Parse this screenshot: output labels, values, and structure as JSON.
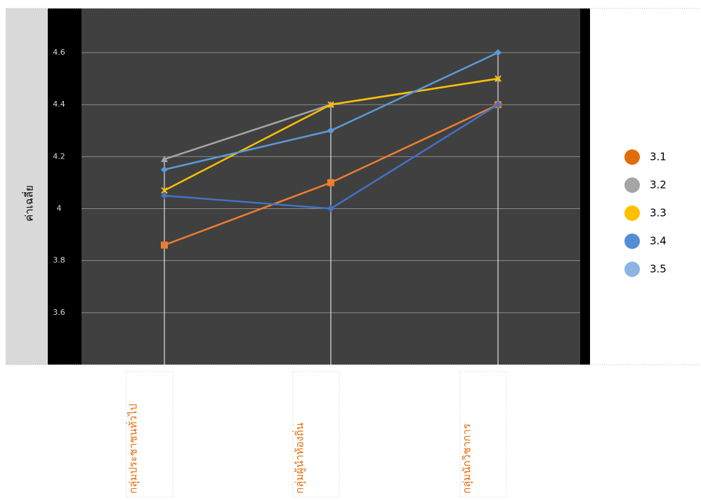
{
  "chart_data": {
    "type": "line",
    "y_label": "ค่าเฉลี่ย",
    "categories": [
      "กลุ่มประชาชนทั่วไป",
      "กลุ่มผู้นำท้องถิ่น",
      "กลุ่มนักวิชาการ"
    ],
    "series": [
      {
        "name": "3.1",
        "color": "#ED7D31",
        "legend_color": "#E36C0A",
        "marker": "square",
        "values": [
          3.86,
          4.1,
          4.4
        ]
      },
      {
        "name": "3.2",
        "color": "#A5A5A5",
        "legend_color": "#A5A5A5",
        "marker": "triangle",
        "values": [
          4.19,
          4.4,
          4.5
        ]
      },
      {
        "name": "3.3",
        "color": "#FFC000",
        "legend_color": "#FFC000",
        "marker": "x",
        "values": [
          4.07,
          4.4,
          4.5
        ]
      },
      {
        "name": "3.4",
        "color": "#4472C4",
        "legend_color": "#558ED5",
        "marker": "diamond",
        "values": [
          4.05,
          4.0,
          4.4
        ]
      },
      {
        "name": "3.5",
        "color": "#5B9BD5",
        "legend_color": "#8EB4E3",
        "marker": "diamond",
        "values": [
          4.15,
          4.3,
          4.6
        ]
      }
    ],
    "ylim": [
      3.4,
      4.77
    ],
    "yticks": [
      3.6,
      3.8,
      4,
      4.2,
      4.4,
      4.6
    ],
    "grid": true
  }
}
